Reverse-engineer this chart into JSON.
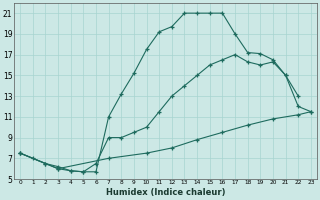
{
  "xlabel": "Humidex (Indice chaleur)",
  "background_color": "#cce8e5",
  "grid_color": "#a8d4d0",
  "line_color": "#1e6b5e",
  "xlim": [
    -0.5,
    23.5
  ],
  "ylim": [
    5,
    22
  ],
  "xticks": [
    0,
    1,
    2,
    3,
    4,
    5,
    6,
    7,
    8,
    9,
    10,
    11,
    12,
    13,
    14,
    15,
    16,
    17,
    18,
    19,
    20,
    21,
    22,
    23
  ],
  "yticks": [
    5,
    7,
    9,
    11,
    13,
    15,
    17,
    19,
    21
  ],
  "series": [
    {
      "x": [
        0,
        1,
        2,
        3,
        4,
        5,
        6,
        7,
        8,
        9,
        10,
        11,
        12,
        13,
        14,
        15,
        16,
        17,
        18,
        19,
        20,
        21,
        22
      ],
      "y": [
        7.5,
        7.0,
        6.5,
        6.2,
        5.8,
        5.7,
        5.7,
        11.0,
        13.2,
        15.2,
        17.5,
        19.2,
        19.7,
        21.0,
        21.0,
        21.0,
        21.0,
        19.0,
        17.2,
        17.1,
        16.5,
        15.0,
        13.0
      ]
    },
    {
      "x": [
        0,
        2,
        3,
        4,
        5,
        6,
        7,
        8,
        9,
        10,
        11,
        12,
        13,
        14,
        15,
        16,
        17,
        18,
        19,
        20,
        21,
        22,
        23
      ],
      "y": [
        7.5,
        6.5,
        6.0,
        5.8,
        5.7,
        6.5,
        9.0,
        9.0,
        9.5,
        10.0,
        11.5,
        13.0,
        14.0,
        15.0,
        16.0,
        16.5,
        17.0,
        16.3,
        16.0,
        16.3,
        15.0,
        12.0,
        11.5
      ]
    },
    {
      "x": [
        0,
        3,
        7,
        10,
        12,
        14,
        16,
        18,
        20,
        22,
        23
      ],
      "y": [
        7.5,
        6.0,
        7.0,
        7.5,
        8.0,
        8.8,
        9.5,
        10.2,
        10.8,
        11.2,
        11.5
      ]
    }
  ]
}
